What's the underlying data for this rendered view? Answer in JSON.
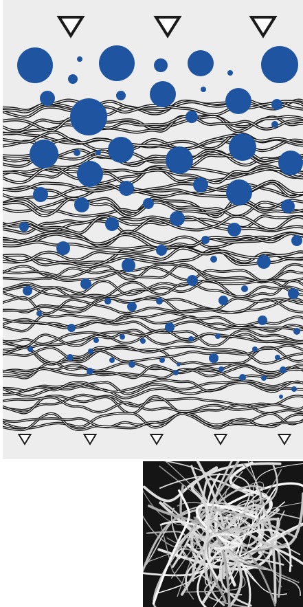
{
  "diagram": {
    "description_free": true,
    "colors": {
      "panel_background": "#ededed",
      "particle_blue": "#1f55a0",
      "fiber_dark": "#1a1a1a",
      "fiber_light": "#ffffff",
      "arrow_stroke": "#1a1a1a",
      "arrow_fill": "#ffffff",
      "micrograph_background": "#151515",
      "micrograph_fiber": "#dcdcdc"
    },
    "icons": {
      "inflow_arrow": "down-triangle-large",
      "outflow_arrow": "down-triangle-small",
      "particle": "filled-circle"
    },
    "inflow_arrow_count": 3,
    "outflow_arrow_count": 5,
    "fiber_layers": 20
  }
}
